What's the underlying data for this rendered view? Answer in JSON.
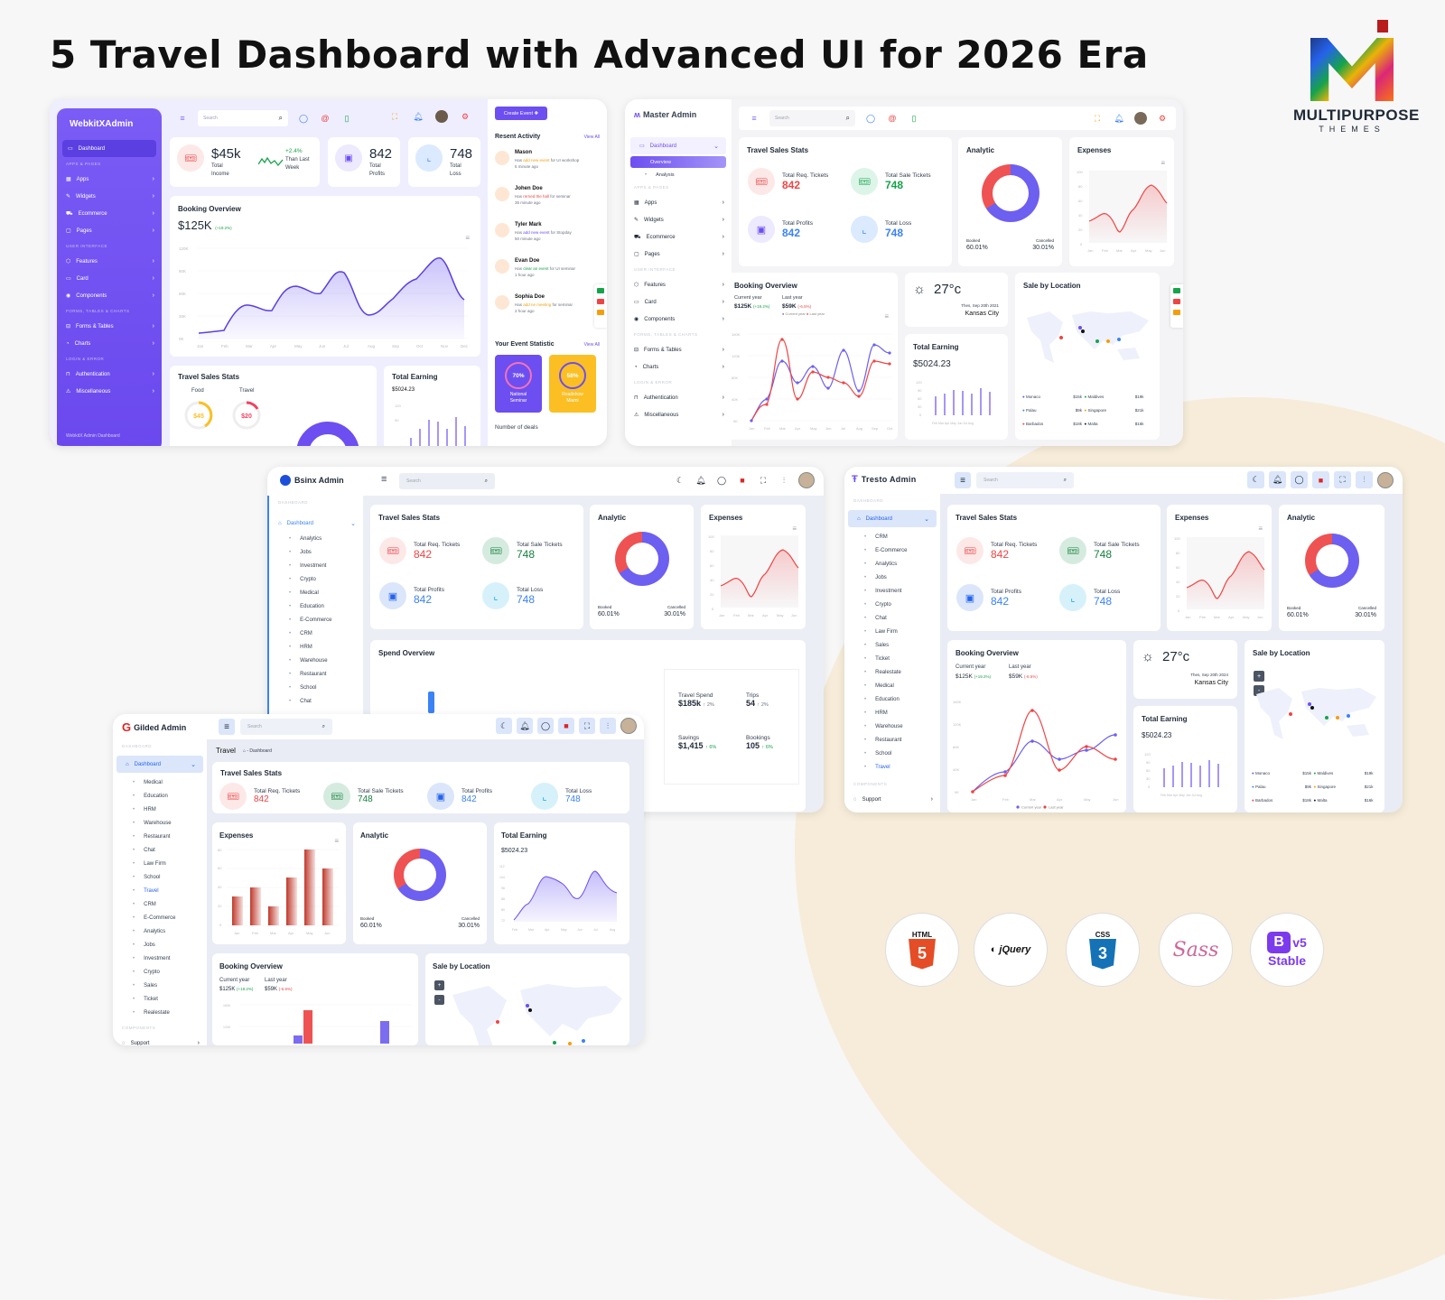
{
  "headline": "5 Travel Dashboard with Advanced UI for 2026 Era",
  "brand": {
    "name": "MULTIPURPOSE",
    "sub": "THEMES"
  },
  "colors": {
    "purple": "#6d4ef0",
    "red": "#ef4444",
    "green": "#16a34a",
    "blue": "#3b82f6",
    "orange": "#fbbf24",
    "cream": "#f6ecd9"
  },
  "webkit": {
    "logo": "WebkitXAdmin",
    "search_placeholder": "Search",
    "sidebar": {
      "active": "Dashboard",
      "sections": [
        {
          "title": "APPS & PAGES",
          "items": [
            "Apps",
            "Widgets",
            "Ecommerce",
            "Pages"
          ]
        },
        {
          "title": "USER INTERFACE",
          "items": [
            "Features",
            "Card",
            "Components"
          ]
        },
        {
          "title": "FORMS, TABLES & CHARTS",
          "items": [
            "Forms & Tables",
            "Charts"
          ]
        },
        {
          "title": "LOGIN & ERROR",
          "items": [
            "Authentication",
            "Miscellaneous"
          ]
        }
      ],
      "footer": "WebkitX Admin Dashboard"
    },
    "kpis": {
      "income": {
        "value": "$45k",
        "label1": "Total",
        "label2": "Income",
        "change": "+2.4%",
        "change_l1": "Than Last",
        "change_l2": "Week"
      },
      "profits": {
        "value": "842",
        "label1": "Total",
        "label2": "Profits"
      },
      "loss": {
        "value": "748",
        "label1": "Total",
        "label2": "Loss"
      }
    },
    "booking": {
      "title": "Booking Overview",
      "value": "$125K",
      "change": "(+19.2%)"
    },
    "travel_stats": {
      "title": "Travel Sales Stats",
      "food_label": "Food",
      "food_value": "$45",
      "travel_label": "Travel",
      "travel_value": "$20"
    },
    "earning": {
      "title": "Total Earning",
      "value": "$5024.23"
    },
    "right": {
      "create_btn": "Create Event ✚",
      "activity_title": "Resent Activity",
      "view_all": "View All",
      "activities": [
        {
          "name": "Mason",
          "pre": "Has ",
          "hl": "add new event",
          "post": " for UI workshop",
          "time": "5 minute ago",
          "color": "#f59e0b"
        },
        {
          "name": "Johen Doe",
          "pre": "Has ",
          "hl": "rerned the hall",
          "post": " for seminar",
          "time": "35 minute ago",
          "color": "#ef4444"
        },
        {
          "name": "Tyler Mark",
          "pre": "Has ",
          "hl": "add new event",
          "post": " for Stopday",
          "time": "50 minute ago",
          "color": "#6d4ef0"
        },
        {
          "name": "Evan Doe",
          "pre": "Has ",
          "hl": "clear an event",
          "post": " for UI seminar",
          "time": "1 hour ago",
          "color": "#16a34a"
        },
        {
          "name": "Sophia Doe",
          "pre": "Has ",
          "hl": "add ne meeting",
          "post": " for seminar",
          "time": "2 hour ago",
          "color": "#f59e0b"
        }
      ],
      "event_title": "Your Event Statistic",
      "event_view_all": "View All",
      "events": [
        {
          "pct": "70%",
          "l1": "National",
          "l2": "Seminar"
        },
        {
          "pct": "58%",
          "l1": "Roadshow",
          "l2": "Miami"
        }
      ],
      "deals": "Number of deals"
    }
  },
  "master": {
    "logo": "Master Admin",
    "search_placeholder": "Search",
    "sidebar": {
      "dashboard": "Dashboard",
      "subs": [
        "Overview",
        "Analysis"
      ],
      "sections": [
        {
          "title": "APPS & PAGES",
          "items": [
            "Apps",
            "Widgets",
            "Ecommerce",
            "Pages"
          ]
        },
        {
          "title": "USER INTERFACE",
          "items": [
            "Features",
            "Card",
            "Components"
          ]
        },
        {
          "title": "FORMS, TABLES & CHARTS",
          "items": [
            "Forms & Tables",
            "Charts"
          ]
        },
        {
          "title": "LOGIN & ERROR",
          "items": [
            "Authentication",
            "Miscellaneous"
          ]
        }
      ]
    },
    "weather": {
      "temp": "27°c",
      "date": "Thes, Sep 20th 2021",
      "city": "Kansas City"
    },
    "earning": {
      "title": "Total Earning",
      "value": "$5024.23"
    }
  },
  "shared": {
    "travel_stats_title": "Travel Sales Stats",
    "stats": [
      {
        "label": "Total Req. Tickets",
        "value": "842",
        "color": "#ef4444",
        "bg": "#fde8e8"
      },
      {
        "label": "Total Sale Tickets",
        "value": "748",
        "color": "#16a34a",
        "bg": "#dcf5e8"
      },
      {
        "label": "Total Profits",
        "value": "842",
        "color": "#3b82f6",
        "bg": "#ede9fe"
      },
      {
        "label": "Total Loss",
        "value": "748",
        "color": "#3b82f6",
        "bg": "#dbeafe"
      }
    ],
    "analytic": {
      "title": "Analytic",
      "booked_label": "Booked",
      "booked": "60.01%",
      "cancelled_label": "Cancelled",
      "cancelled": "30.01%"
    },
    "expenses_title": "Expenses",
    "booking": {
      "title": "Booking Overview",
      "cur_label": "Current year",
      "cur_value": "$125K",
      "cur_change": "(+19.2%)",
      "last_label": "Last year",
      "last_value": "$59K",
      "last_change": "(-6.5%)",
      "legend_cur": "Current year",
      "legend_last": "Last year"
    },
    "location": {
      "title": "Sale by Location",
      "rows": [
        {
          "name": "Monaco",
          "value": "$15k",
          "color": "#6d4ef0",
          "name2": "Maldives",
          "value2": "$19k",
          "color2": "#16a34a"
        },
        {
          "name": "Palau",
          "value": "$9k",
          "color": "#3b82f6",
          "name2": "Singapore",
          "value2": "$21k",
          "color2": "#f59e0b"
        },
        {
          "name": "Barbados",
          "value": "$18k",
          "color": "#ef4444",
          "name2": "Malta",
          "value2": "$16k",
          "color2": "#111827"
        }
      ]
    }
  },
  "bsinx": {
    "logo": "Bsinx Admin",
    "search_placeholder": "Search",
    "section": "DASHBOARD",
    "dashboard": "Dashboard",
    "subs": [
      "Analytics",
      "Jobs",
      "Investment",
      "Crypto",
      "Medical",
      "Education",
      "E-Commerce",
      "CRM",
      "HRM",
      "Warehouse",
      "Restaurant",
      "School",
      "Chat"
    ],
    "spend": {
      "title": "Spend Overview",
      "items": [
        {
          "label": "Travel Spend",
          "value": "$185k",
          "change": "2%",
          "color": "#6b7280"
        },
        {
          "label": "Trips",
          "value": "54",
          "change": "2%",
          "color": "#6b7280"
        },
        {
          "label": "Savings",
          "value": "$1,415",
          "change": "6%",
          "color": "#16a34a"
        },
        {
          "label": "Bookings",
          "value": "105",
          "change": "6%",
          "color": "#16a34a"
        }
      ]
    }
  },
  "tresto": {
    "logo": "Tresto Admin",
    "search_placeholder": "Search",
    "section": "DASHBOARD",
    "dashboard": "Dashboard",
    "subs": [
      "CRM",
      "E-Commerce",
      "Analytics",
      "Jobs",
      "Investment",
      "Crypto",
      "Chat",
      "Law Firm",
      "Sales",
      "Ticket",
      "Realestate",
      "Medical",
      "Education",
      "HRM",
      "Warehouse",
      "Restaurant",
      "School",
      "Travel"
    ],
    "components": "COMPONENTS",
    "support": "Support",
    "weather": {
      "temp": "27°c",
      "date": "Thes, Sep 20th 2024",
      "city": "Kansas City"
    },
    "earning": {
      "title": "Total Earning",
      "value": "$5024.23"
    }
  },
  "gilded": {
    "logo": "Gilded Admin",
    "search_placeholder": "Search",
    "section": "DASHBOARD",
    "dashboard": "Dashboard",
    "subs": [
      "Medical",
      "Education",
      "HRM",
      "Warehouse",
      "Restaurant",
      "Chat",
      "Law Firm",
      "School",
      "Travel",
      "CRM",
      "E-Commerce",
      "Analytics",
      "Jobs",
      "Investment",
      "Crypto",
      "Sales",
      "Ticket",
      "Realestate"
    ],
    "components": "COMPONENTS",
    "support": "Support",
    "page_title": "Travel",
    "breadcrumb": "Dashboard",
    "earning": {
      "title": "Total Earning",
      "value": "$5024.23"
    }
  },
  "tech_badges": [
    "HTML5",
    "jQuery",
    "CSS3",
    "Sass",
    "Bootstrap v5 Stable"
  ],
  "chart_data": [
    {
      "type": "area",
      "title": "Booking Overview (WebkitXAdmin)",
      "categories": [
        "Jan",
        "Feb",
        "Mar",
        "Apr",
        "May",
        "Jun",
        "Jul",
        "Aug",
        "Sep",
        "Oct",
        "Nov",
        "Dec"
      ],
      "values": [
        8,
        10,
        45,
        35,
        75,
        60,
        100,
        30,
        55,
        90,
        120,
        50
      ],
      "ylim": [
        0,
        120
      ],
      "yticks": [
        "0K",
        "30K",
        "60K",
        "90K",
        "120K"
      ]
    },
    {
      "type": "line",
      "title": "Booking Overview (Master Admin)",
      "categories": [
        "Jan",
        "Feb",
        "Mar",
        "Apr",
        "May",
        "Jun",
        "Jul",
        "Aug",
        "Sep",
        "Oct"
      ],
      "series": [
        {
          "name": "Current year",
          "values": [
            0,
            40,
            110,
            70,
            100,
            60,
            130,
            55,
            140,
            125
          ]
        },
        {
          "name": "Last year",
          "values": [
            0,
            30,
            150,
            40,
            90,
            80,
            70,
            45,
            110,
            105
          ]
        }
      ],
      "ylim": [
        0,
        160
      ],
      "yticks": [
        "0K",
        "40K",
        "80K",
        "120K",
        "160K"
      ]
    },
    {
      "type": "line",
      "title": "Booking Overview (Tresto Admin)",
      "categories": [
        "Jan",
        "Feb",
        "Mar",
        "Apr",
        "May",
        "Jun"
      ],
      "series": [
        {
          "name": "Current year",
          "values": [
            0,
            40,
            110,
            70,
            100,
            130
          ]
        },
        {
          "name": "Last year",
          "values": [
            0,
            30,
            150,
            40,
            90,
            70
          ]
        }
      ],
      "ylim": [
        0,
        160
      ]
    },
    {
      "type": "area",
      "title": "Expenses",
      "categories": [
        "Jan",
        "Feb",
        "Mar",
        "Apr",
        "May",
        "Jun"
      ],
      "values": [
        30,
        40,
        20,
        50,
        80,
        60
      ],
      "ylim": [
        0,
        100
      ],
      "yticks": [
        "0",
        "20",
        "40",
        "60",
        "80",
        "100"
      ]
    },
    {
      "type": "bar",
      "title": "Expenses (Gilded)",
      "categories": [
        "Jan",
        "Feb",
        "Mar",
        "Apr",
        "May",
        "Jun"
      ],
      "values": [
        30,
        40,
        20,
        50,
        80,
        60
      ],
      "ylim": [
        0,
        80
      ]
    },
    {
      "type": "pie",
      "title": "Analytic",
      "categories": [
        "Booked",
        "Cancelled"
      ],
      "values": [
        60.01,
        30.01
      ]
    },
    {
      "type": "bar",
      "title": "Total Earning",
      "categories": [
        "Feb",
        "Mar",
        "Apr",
        "May",
        "Jun",
        "Jul",
        "Aug"
      ],
      "values": [
        70,
        80,
        95,
        92,
        82,
        100,
        88
      ],
      "ylim": [
        0,
        120
      ],
      "yticks": [
        "0",
        "30",
        "60",
        "90",
        "120"
      ]
    },
    {
      "type": "area",
      "title": "Total Earning (Gilded)",
      "categories": [
        "Feb",
        "Mar",
        "Apr",
        "May",
        "Jun",
        "Jul",
        "Aug"
      ],
      "values": [
        74,
        86,
        102,
        99,
        84,
        105,
        88
      ],
      "ylim": [
        72,
        112
      ]
    }
  ]
}
